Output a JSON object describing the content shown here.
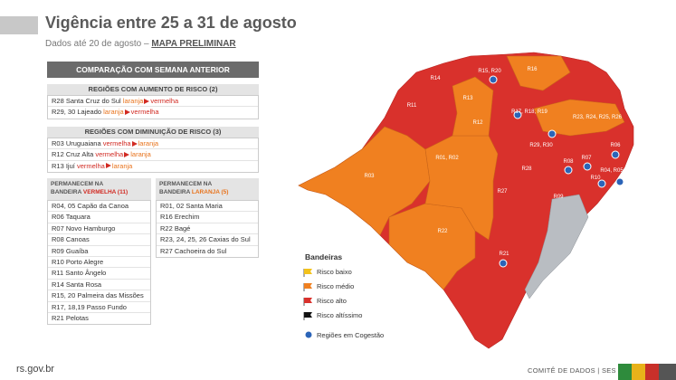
{
  "header": {
    "title": "Vigência entre 25 a 31 de agosto",
    "subtitle": "Dados até 20 de agosto –",
    "subtitle_link": "MAPA PRELIMINAR"
  },
  "comparison": {
    "title": "COMPARAÇÃO COM SEMANA ANTERIOR",
    "increase": {
      "title": "REGIÕES  COM AUMENTO DE RISCO (2)",
      "rows": [
        {
          "region": "R28 Santa Cruz do Sul",
          "from": "laranja",
          "to": "vermelha"
        },
        {
          "region": "R29, 30 Lajeado",
          "from": "laranja",
          "to": "vermelha"
        }
      ]
    },
    "decrease": {
      "title": "REGIÕES  COM DIMINUIÇÃO DE RISCO (3)",
      "rows": [
        {
          "region": "R03 Uruguaiana",
          "from": "vermelha",
          "to": "laranja"
        },
        {
          "region": "R12 Cruz Alta",
          "from": "vermelha",
          "to": "laranja"
        },
        {
          "region": "R13 Ijuí",
          "from": "vermelha",
          "to": "laranja"
        }
      ]
    }
  },
  "remain_red": {
    "title_line1": "PERMANECEM NA",
    "title_line2": "BANDEIRA",
    "flag": "VERMELHA (11)",
    "rows": [
      "R04, 05 Capão da Canoa",
      "R06 Taquara",
      "R07 Novo Hamburgo",
      "R08 Canoas",
      "R09 Guaíba",
      "R10 Porto Alegre",
      "R11 Santo Ângelo",
      "R14 Santa Rosa",
      "R15, 20 Palmeira das Missões",
      "R17, 18,19 Passo Fundo",
      "R21 Pelotas"
    ]
  },
  "remain_orange": {
    "title_line1": "PERMANECEM NA",
    "title_line2": "BANDEIRA",
    "flag": "LARANJA (5)",
    "rows": [
      "R01, 02 Santa Maria",
      "R16 Erechim",
      "R22 Bagé",
      "R23, 24, 25, 26 Caxias do Sul",
      "R27 Cachoeira do Sul"
    ]
  },
  "map": {
    "labels": [
      "R15, R20",
      "R16",
      "R14",
      "R13",
      "R11",
      "R12",
      "R17, R18, R19",
      "R23, R24, R25, R26",
      "R01, R02",
      "R29, R30",
      "R03",
      "R28",
      "R06",
      "R08",
      "R07",
      "R04, R05",
      "R10",
      "R09",
      "R27",
      "R22",
      "R21"
    ]
  },
  "legend": {
    "title": "Bandeiras",
    "items": [
      "Risco baixo",
      "Risco médio",
      "Risco alto",
      "Risco altíssimo"
    ],
    "cogestao": "Regiões em Cogestão"
  },
  "footer": {
    "site": "rs.gov.br",
    "credit": "COMITÊ DE DADOS | SES"
  }
}
